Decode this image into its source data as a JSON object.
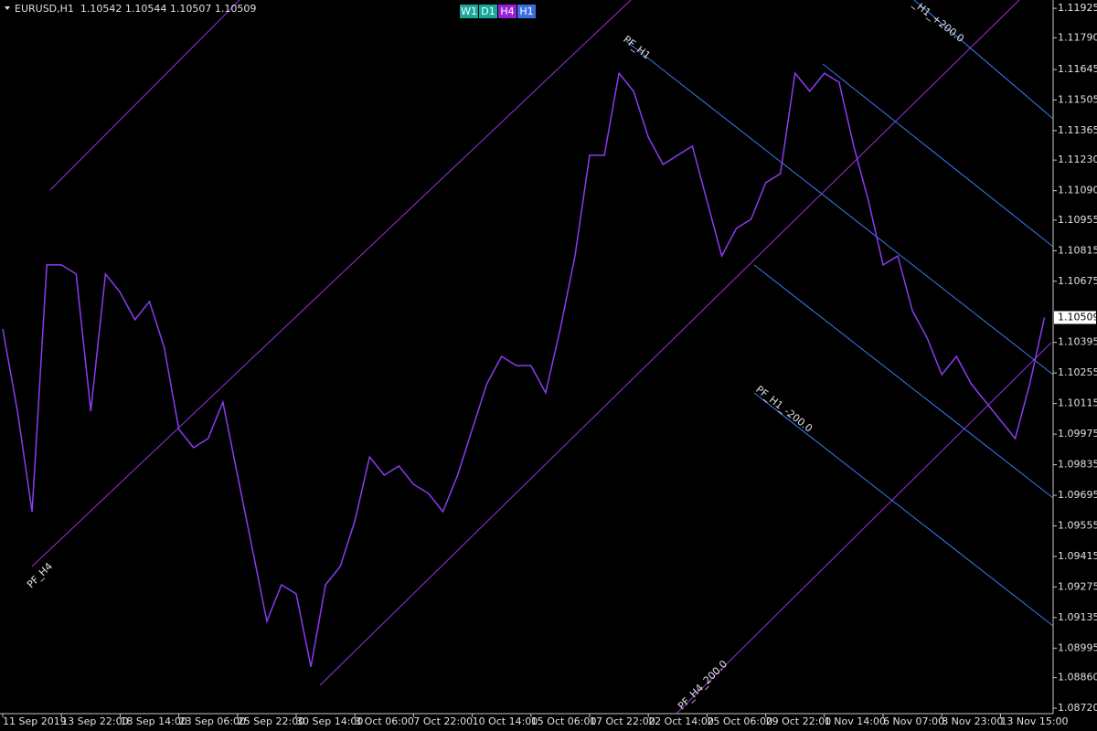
{
  "chart_data": {
    "type": "line",
    "title": "EURUSD,H1  1.10542 1.10544 1.10507 1.10509",
    "buttons": [
      {
        "label": "W1",
        "color": "#1aa89a"
      },
      {
        "label": "D1",
        "color": "#1aa89a"
      },
      {
        "label": "H4",
        "color": "#9a1fd6"
      },
      {
        "label": "H1",
        "color": "#3a6fe0"
      }
    ],
    "annotations": [
      "PF_H1",
      "_H1_+200.0",
      "PF_H1_-200.0",
      "PF_H4",
      "PF_H4_200.0"
    ],
    "categories": [
      "11 Sep 2019",
      null,
      null,
      null,
      "13 Sep 22:00",
      null,
      null,
      null,
      "18 Sep 14:00",
      null,
      null,
      null,
      "23 Sep 06:00",
      null,
      null,
      null,
      "25 Sep 22:00",
      null,
      null,
      null,
      "30 Sep 14:00",
      null,
      null,
      null,
      "3 Oct 06:00",
      null,
      null,
      null,
      "7 Oct 22:00",
      null,
      null,
      null,
      "10 Oct 14:00",
      null,
      null,
      null,
      "15 Oct 06:00",
      null,
      null,
      null,
      "17 Oct 22:00",
      null,
      null,
      null,
      "22 Oct 14:00",
      null,
      null,
      null,
      "25 Oct 06:00",
      null,
      null,
      null,
      "29 Oct 22:00",
      null,
      null,
      null,
      "1 Nov 14:00",
      null,
      null,
      null,
      "6 Nov 07:00",
      null,
      null,
      null,
      "8 Nov 23:00",
      null,
      null,
      null,
      "13 Nov 15:00",
      null,
      null,
      null
    ],
    "series": [
      {
        "color": "#8a3cf0",
        "values": [
          1.10457,
          1.1008,
          1.0962,
          1.1075,
          1.1075,
          1.10708,
          1.1008,
          1.10708,
          1.10624,
          1.10499,
          1.10582,
          1.10373,
          1.09997,
          1.09913,
          1.09955,
          1.10122,
          1.09787,
          1.09453,
          1.09118,
          1.09285,
          1.09243,
          1.08909,
          1.09285,
          1.09369,
          1.09578,
          1.09871,
          1.09787,
          1.09829,
          1.09745,
          1.09704,
          1.0962,
          1.09787,
          1.09997,
          1.10206,
          1.10331,
          1.10289,
          1.10289,
          1.10164,
          1.10457,
          1.10791,
          1.11252,
          1.11252,
          1.11628,
          1.11545,
          1.11335,
          1.1121,
          1.11252,
          1.11294,
          1.11043,
          1.10791,
          1.10917,
          1.10959,
          1.11126,
          1.11168,
          1.11628,
          1.11545,
          1.11628,
          1.11586,
          1.11294,
          1.11043,
          1.1075,
          1.10791,
          1.1054,
          1.10415,
          1.10248,
          1.10331,
          1.10206,
          1.10122,
          1.10038,
          1.09955,
          1.10206,
          1.10509
        ]
      }
    ],
    "ylim": [
      1.08695,
      1.11963
    ],
    "yticks": [
      1.11925,
      {
        "value": 1.1179,
        "label": "1.11790"
      },
      1.11645,
      1.11505,
      1.11365,
      {
        "value": 1.1123,
        "label": "1.11230"
      },
      {
        "value": 1.1109,
        "label": "1.11090"
      },
      1.10955,
      1.10815,
      1.10675,
      1.10395,
      1.10255,
      1.10115,
      1.09975,
      1.09835,
      1.09695,
      1.09555,
      1.09415,
      1.09275,
      1.09135,
      1.08995,
      {
        "value": 1.0886,
        "label": "1.08860"
      },
      {
        "value": 1.0872,
        "label": "1.08720"
      }
    ],
    "last_price": 1.10509
  }
}
